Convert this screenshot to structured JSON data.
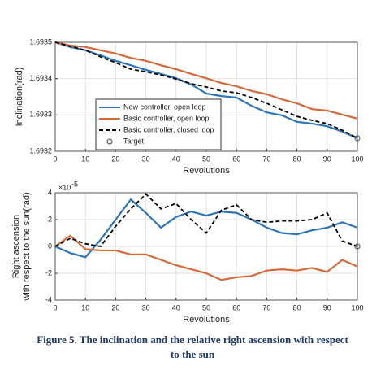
{
  "chart_data": [
    {
      "type": "line",
      "xlabel": "Revolutions",
      "ylabel": "Inclination(rad)",
      "x": [
        0,
        5,
        10,
        15,
        20,
        25,
        30,
        35,
        40,
        45,
        50,
        55,
        60,
        65,
        70,
        75,
        80,
        85,
        90,
        95,
        100
      ],
      "xlim": [
        0,
        100
      ],
      "xticks": [
        0,
        10,
        20,
        30,
        40,
        50,
        60,
        70,
        80,
        90,
        100
      ],
      "ylim": [
        1.6932,
        1.6935
      ],
      "yticks": [
        1.6932,
        1.6933,
        1.6934,
        1.6935
      ],
      "grid": true,
      "legend": "lower left",
      "series": [
        {
          "name": "New controller, open loop",
          "color": "#2e75b6",
          "style": "solid",
          "values": [
            1.6935,
            1.693487,
            1.693478,
            1.693464,
            1.693449,
            1.693437,
            1.693424,
            1.693413,
            1.693401,
            1.693384,
            1.693359,
            1.693352,
            1.693348,
            1.693325,
            1.693307,
            1.693299,
            1.693281,
            1.693276,
            1.693269,
            1.693254,
            1.693236
          ]
        },
        {
          "name": "Basic controller, open loop",
          "color": "#d4693a",
          "style": "solid",
          "values": [
            1.6935,
            1.693491,
            1.693487,
            1.693478,
            1.693469,
            1.693457,
            1.693449,
            1.693437,
            1.693426,
            1.693413,
            1.693401,
            1.693388,
            1.693379,
            1.693366,
            1.693357,
            1.693343,
            1.693332,
            1.693316,
            1.693312,
            1.693301,
            1.69329
          ]
        },
        {
          "name": "Basic controller, closed loop",
          "color": "#000000",
          "style": "dashed",
          "values": [
            1.6935,
            1.693489,
            1.693478,
            1.69346,
            1.693444,
            1.693426,
            1.693419,
            1.69341,
            1.693399,
            1.693386,
            1.693377,
            1.693366,
            1.693361,
            1.693348,
            1.693332,
            1.693314,
            1.693296,
            1.693285,
            1.693276,
            1.693258,
            1.693236
          ]
        }
      ],
      "target": {
        "name": "Target",
        "x": 100,
        "y": 1.693236
      }
    },
    {
      "type": "line",
      "xlabel": "Revolutions",
      "ylabel": [
        "Right ascension",
        "with respect to the sun(rad)"
      ],
      "y_exponent": {
        "base": "×10",
        "power": "-5"
      },
      "x": [
        0,
        5,
        10,
        15,
        20,
        25,
        30,
        35,
        40,
        45,
        50,
        55,
        60,
        65,
        70,
        75,
        80,
        85,
        90,
        95,
        100
      ],
      "xlim": [
        0,
        100
      ],
      "xticks": [
        0,
        10,
        20,
        30,
        40,
        50,
        60,
        70,
        80,
        90,
        100
      ],
      "ylim": [
        -4,
        4
      ],
      "yticks": [
        -4,
        -2,
        0,
        2,
        4
      ],
      "grid": true,
      "series": [
        {
          "name": "New controller, open loop",
          "color": "#2e75b6",
          "style": "solid",
          "values": [
            0,
            -0.5,
            -0.8,
            0.5,
            2,
            3.5,
            2.5,
            1.4,
            2.2,
            2.6,
            2.3,
            2.6,
            2.5,
            2,
            1.4,
            1,
            0.9,
            1.2,
            1.4,
            1.8,
            1.4
          ]
        },
        {
          "name": "Basic controller, open loop",
          "color": "#d4693a",
          "style": "solid",
          "values": [
            0,
            0.8,
            -0.2,
            -0.3,
            -0.3,
            -0.6,
            -0.6,
            -1,
            -1.4,
            -1.7,
            -2,
            -2.5,
            -2.3,
            -2.2,
            -1.8,
            -1.7,
            -1.8,
            -1.6,
            -1.9,
            -1,
            -1.5
          ]
        },
        {
          "name": "Basic controller, closed loop",
          "color": "#000000",
          "style": "dashed",
          "values": [
            0,
            0.6,
            0.2,
            0,
            1.5,
            2.8,
            3.9,
            2.8,
            3.2,
            2,
            1,
            2.7,
            3.1,
            2,
            1.8,
            1.9,
            1.9,
            2,
            2.5,
            0.4,
            0
          ]
        }
      ],
      "target": {
        "name": "Target",
        "x": 100,
        "y": 0
      }
    }
  ],
  "caption": [
    "Figure 5. The inclination and the relative right ascension with respect",
    "to the sun"
  ]
}
